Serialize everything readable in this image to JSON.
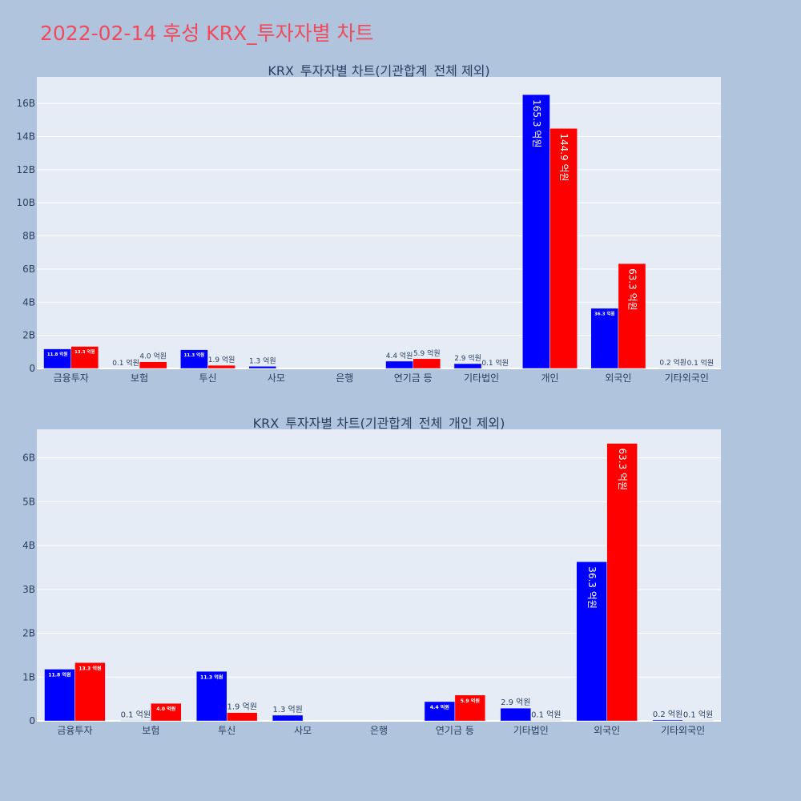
{
  "page": {
    "title": "2022-02-14 후성 KRX_투자자별 차트"
  },
  "colors": {
    "background": "#b0c4de",
    "plot_background": "#e5ecf6",
    "title_color": "#ef4b5d",
    "series_buy": "#0000ff",
    "series_sell": "#ff0000"
  },
  "chart_data": [
    {
      "type": "bar",
      "title": "KRX_투자자별 차트(기관합계_전체 제외)",
      "categories": [
        "금융투자",
        "보험",
        "투신",
        "사모",
        "은행",
        "연기금 등",
        "기타법인",
        "개인",
        "외국인",
        "기타외국인"
      ],
      "series": [
        {
          "color": "#0000ff",
          "values": [
            1180000000,
            10000000,
            1130000000,
            130000000,
            0,
            440000000,
            290000000,
            16530000000,
            3630000000,
            20000000
          ],
          "labels": [
            "11.8 억원",
            "0.1 억원",
            "11.3 억원",
            "1.3 억원",
            "",
            "4.4 억원",
            "2.9 억원",
            "165.3 억원",
            "36.3 억원",
            "0.2 억원"
          ]
        },
        {
          "color": "#ff0000",
          "values": [
            1330000000,
            400000000,
            190000000,
            0,
            0,
            590000000,
            10000000,
            14490000000,
            6330000000,
            10000000
          ],
          "labels": [
            "13.3 억원",
            "4.0 억원",
            "1.9 억원",
            "",
            "",
            "5.9 억원",
            "0.1 억원",
            "144.9 억원",
            "63.3 억원",
            "0.1 억원"
          ]
        }
      ],
      "yticks": [
        {
          "value": 0,
          "label": "0"
        },
        {
          "value": 2000000000,
          "label": "2B"
        },
        {
          "value": 4000000000,
          "label": "4B"
        },
        {
          "value": 6000000000,
          "label": "6B"
        },
        {
          "value": 8000000000,
          "label": "8B"
        },
        {
          "value": 10000000000,
          "label": "10B"
        },
        {
          "value": 12000000000,
          "label": "12B"
        },
        {
          "value": 14000000000,
          "label": "14B"
        },
        {
          "value": 16000000000,
          "label": "16B"
        }
      ],
      "ylim": [
        0,
        17600000000
      ],
      "grid": true
    },
    {
      "type": "bar",
      "title": "KRX_투자자별 차트(기관합계_전체_개인 제외)",
      "categories": [
        "금융투자",
        "보험",
        "투신",
        "사모",
        "은행",
        "연기금 등",
        "기타법인",
        "외국인",
        "기타외국인"
      ],
      "series": [
        {
          "color": "#0000ff",
          "values": [
            1180000000,
            10000000,
            1130000000,
            130000000,
            0,
            440000000,
            290000000,
            3630000000,
            20000000
          ],
          "labels": [
            "11.8 억원",
            "0.1 억원",
            "11.3 억원",
            "1.3 억원",
            "",
            "4.4 억원",
            "2.9 억원",
            "36.3 억원",
            "0.2 억원"
          ]
        },
        {
          "color": "#ff0000",
          "values": [
            1330000000,
            400000000,
            190000000,
            0,
            0,
            590000000,
            10000000,
            6330000000,
            10000000
          ],
          "labels": [
            "13.3 억원",
            "4.0 억원",
            "1.9 억원",
            "",
            "",
            "5.9 억원",
            "0.1 억원",
            "63.3 억원",
            "0.1 억원"
          ]
        }
      ],
      "yticks": [
        {
          "value": 0,
          "label": "0"
        },
        {
          "value": 1000000000,
          "label": "1B"
        },
        {
          "value": 2000000000,
          "label": "2B"
        },
        {
          "value": 3000000000,
          "label": "3B"
        },
        {
          "value": 4000000000,
          "label": "4B"
        },
        {
          "value": 5000000000,
          "label": "5B"
        },
        {
          "value": 6000000000,
          "label": "6B"
        }
      ],
      "ylim": [
        0,
        6650000000
      ],
      "grid": true
    }
  ]
}
